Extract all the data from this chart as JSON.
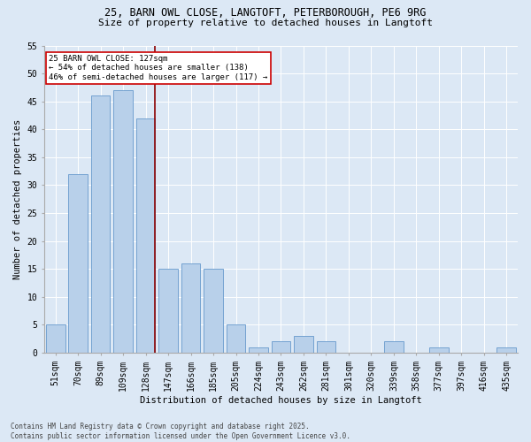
{
  "title_line1": "25, BARN OWL CLOSE, LANGTOFT, PETERBOROUGH, PE6 9RG",
  "title_line2": "Size of property relative to detached houses in Langtoft",
  "xlabel": "Distribution of detached houses by size in Langtoft",
  "ylabel": "Number of detached properties",
  "categories": [
    "51sqm",
    "70sqm",
    "89sqm",
    "109sqm",
    "128sqm",
    "147sqm",
    "166sqm",
    "185sqm",
    "205sqm",
    "224sqm",
    "243sqm",
    "262sqm",
    "281sqm",
    "301sqm",
    "320sqm",
    "339sqm",
    "358sqm",
    "377sqm",
    "397sqm",
    "416sqm",
    "435sqm"
  ],
  "values": [
    5,
    32,
    46,
    47,
    42,
    15,
    16,
    15,
    5,
    1,
    2,
    3,
    2,
    0,
    0,
    2,
    0,
    1,
    0,
    0,
    1
  ],
  "bar_color": "#b8d0ea",
  "bar_edge_color": "#6699cc",
  "reference_line_index": 4,
  "reference_line_color": "#8b0000",
  "annotation_text": "25 BARN OWL CLOSE: 127sqm\n← 54% of detached houses are smaller (138)\n46% of semi-detached houses are larger (117) →",
  "annotation_box_facecolor": "#ffffff",
  "annotation_box_edgecolor": "#cc0000",
  "ylim": [
    0,
    55
  ],
  "yticks": [
    0,
    5,
    10,
    15,
    20,
    25,
    30,
    35,
    40,
    45,
    50,
    55
  ],
  "footer_line1": "Contains HM Land Registry data © Crown copyright and database right 2025.",
  "footer_line2": "Contains public sector information licensed under the Open Government Licence v3.0.",
  "bg_color": "#dce8f5",
  "plot_bg_color": "#dce8f5",
  "title_fontsize": 8.5,
  "subtitle_fontsize": 8.0,
  "tick_fontsize": 7.0,
  "label_fontsize": 7.5,
  "footer_fontsize": 5.5
}
